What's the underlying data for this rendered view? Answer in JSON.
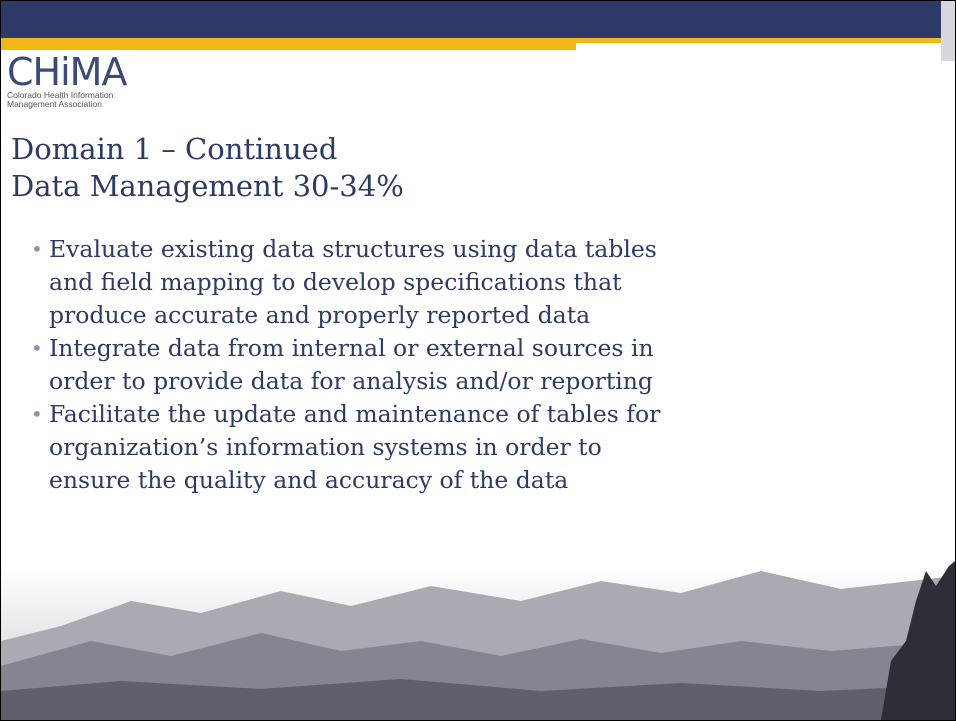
{
  "logo": {
    "name": "CHiMA",
    "tagline": [
      "Colorado Health Information",
      "Management Association"
    ]
  },
  "title": [
    "Domain 1 – Continued",
    "Data Management 30-34%"
  ],
  "bullets": [
    {
      "lines": [
        "Evaluate existing data structures using data tables",
        "and field mapping to develop specifications that",
        "produce accurate and properly reported data"
      ]
    },
    {
      "lines": [
        "Integrate data from internal or external sources in",
        "order to provide data for analysis and/or reporting"
      ]
    },
    {
      "lines": [
        "Facilitate the update and maintenance of tables for",
        "organization’s information systems in order to",
        "ensure the quality and accuracy of the data"
      ]
    }
  ]
}
